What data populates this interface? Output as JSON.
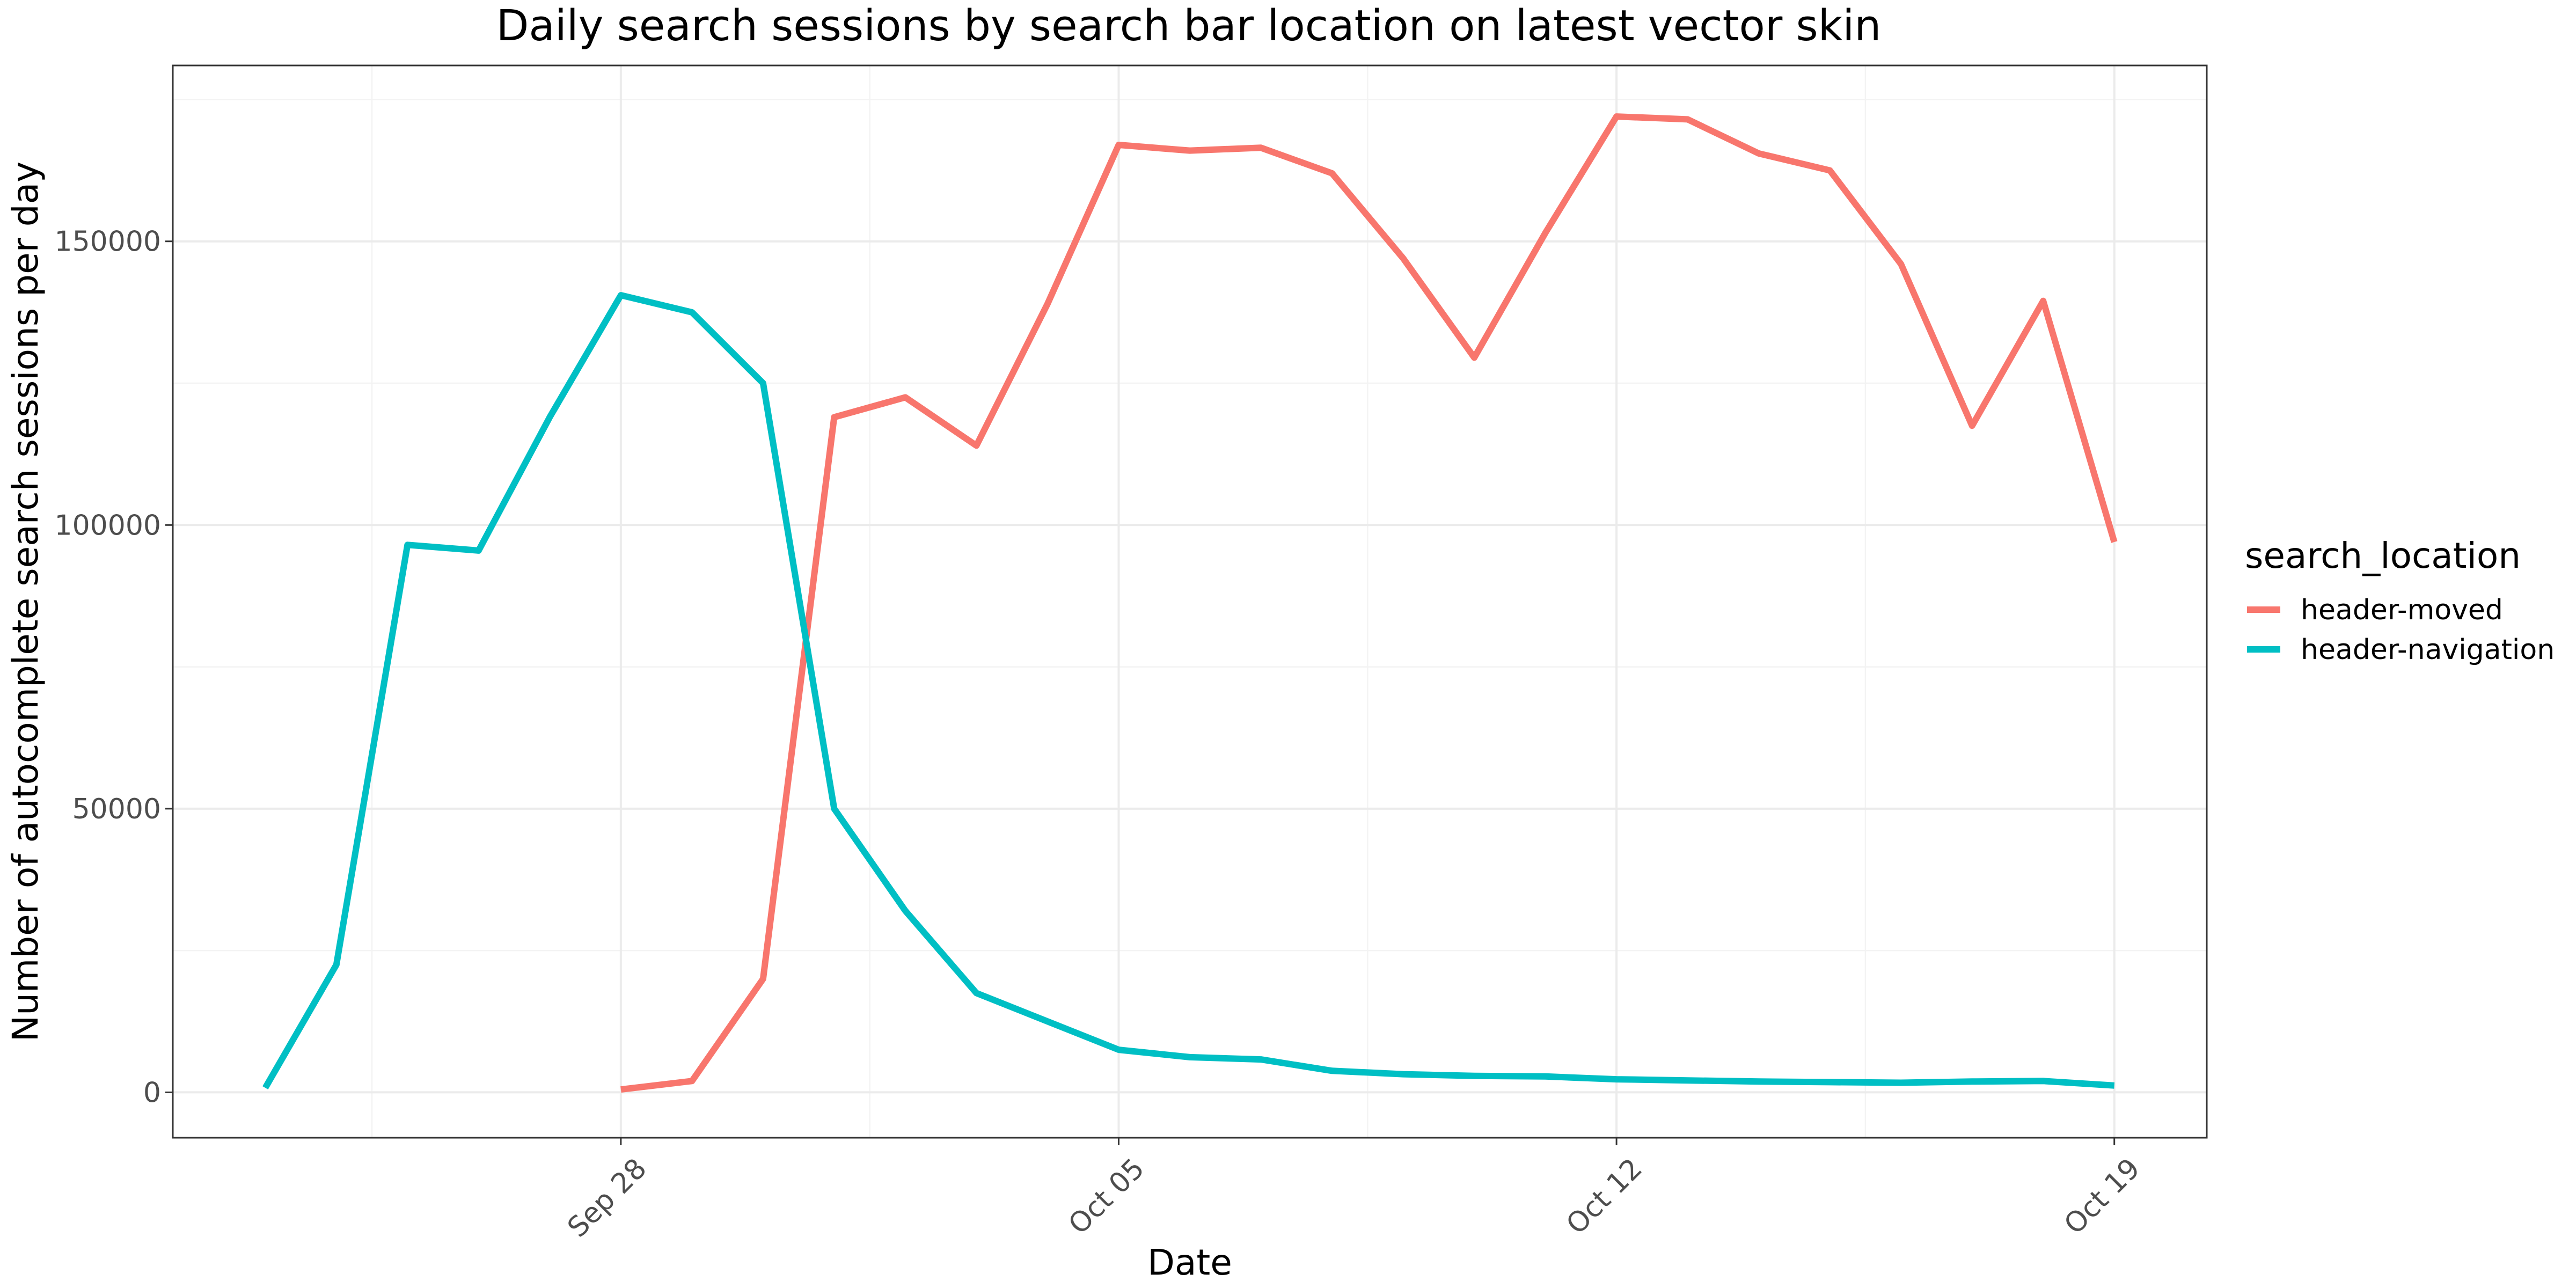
{
  "chart_data": {
    "type": "line",
    "title": "Daily search sessions by search bar location on latest vector skin",
    "xlabel": "Date",
    "ylabel": "Number of autocomplete search sessions per day",
    "x_range": [
      "2023-09-23",
      "2023-10-19"
    ],
    "ylim": [
      -8000,
      181000
    ],
    "x_ticks": [
      {
        "date": "2023-09-28",
        "label": "Sep 28"
      },
      {
        "date": "2023-10-05",
        "label": "Oct 05"
      },
      {
        "date": "2023-10-12",
        "label": "Oct 12"
      },
      {
        "date": "2023-10-19",
        "label": "Oct 19"
      }
    ],
    "y_ticks": [
      {
        "value": 0,
        "label": "0"
      },
      {
        "value": 50000,
        "label": "50000"
      },
      {
        "value": 100000,
        "label": "100000"
      },
      {
        "value": 150000,
        "label": "150000"
      }
    ],
    "grid": true,
    "legend": {
      "title": "search_location",
      "position": "right"
    },
    "series": [
      {
        "name": "header-moved",
        "color": "#f8766d",
        "points": [
          {
            "x": "2023-09-28",
            "y": 500
          },
          {
            "x": "2023-09-29",
            "y": 2000
          },
          {
            "x": "2023-09-30",
            "y": 20000
          },
          {
            "x": "2023-10-01",
            "y": 119000
          },
          {
            "x": "2023-10-02",
            "y": 122500
          },
          {
            "x": "2023-10-03",
            "y": 114000
          },
          {
            "x": "2023-10-04",
            "y": 139000
          },
          {
            "x": "2023-10-05",
            "y": 167000
          },
          {
            "x": "2023-10-06",
            "y": 166000
          },
          {
            "x": "2023-10-07",
            "y": 166500
          },
          {
            "x": "2023-10-08",
            "y": 162000
          },
          {
            "x": "2023-10-09",
            "y": 147000
          },
          {
            "x": "2023-10-10",
            "y": 129500
          },
          {
            "x": "2023-10-11",
            "y": 151500
          },
          {
            "x": "2023-10-12",
            "y": 172000
          },
          {
            "x": "2023-10-13",
            "y": 171500
          },
          {
            "x": "2023-10-14",
            "y": 165500
          },
          {
            "x": "2023-10-15",
            "y": 162500
          },
          {
            "x": "2023-10-16",
            "y": 146000
          },
          {
            "x": "2023-10-17",
            "y": 117500
          },
          {
            "x": "2023-10-18",
            "y": 139500
          },
          {
            "x": "2023-10-19",
            "y": 97000
          }
        ]
      },
      {
        "name": "header-navigation",
        "color": "#00bfc4",
        "points": [
          {
            "x": "2023-09-23",
            "y": 800
          },
          {
            "x": "2023-09-24",
            "y": 22500
          },
          {
            "x": "2023-09-25",
            "y": 96500
          },
          {
            "x": "2023-09-26",
            "y": 95500
          },
          {
            "x": "2023-09-27",
            "y": 119000
          },
          {
            "x": "2023-09-28",
            "y": 140500
          },
          {
            "x": "2023-09-29",
            "y": 137500
          },
          {
            "x": "2023-09-30",
            "y": 125000
          },
          {
            "x": "2023-10-01",
            "y": 50000
          },
          {
            "x": "2023-10-02",
            "y": 32000
          },
          {
            "x": "2023-10-03",
            "y": 17500
          },
          {
            "x": "2023-10-04",
            "y": 12500
          },
          {
            "x": "2023-10-05",
            "y": 7500
          },
          {
            "x": "2023-10-06",
            "y": 6200
          },
          {
            "x": "2023-10-07",
            "y": 5800
          },
          {
            "x": "2023-10-08",
            "y": 3800
          },
          {
            "x": "2023-10-09",
            "y": 3200
          },
          {
            "x": "2023-10-10",
            "y": 2900
          },
          {
            "x": "2023-10-11",
            "y": 2800
          },
          {
            "x": "2023-10-12",
            "y": 2300
          },
          {
            "x": "2023-10-13",
            "y": 2100
          },
          {
            "x": "2023-10-14",
            "y": 1900
          },
          {
            "x": "2023-10-15",
            "y": 1800
          },
          {
            "x": "2023-10-16",
            "y": 1700
          },
          {
            "x": "2023-10-17",
            "y": 1900
          },
          {
            "x": "2023-10-18",
            "y": 2000
          },
          {
            "x": "2023-10-19",
            "y": 1200
          }
        ]
      }
    ]
  }
}
